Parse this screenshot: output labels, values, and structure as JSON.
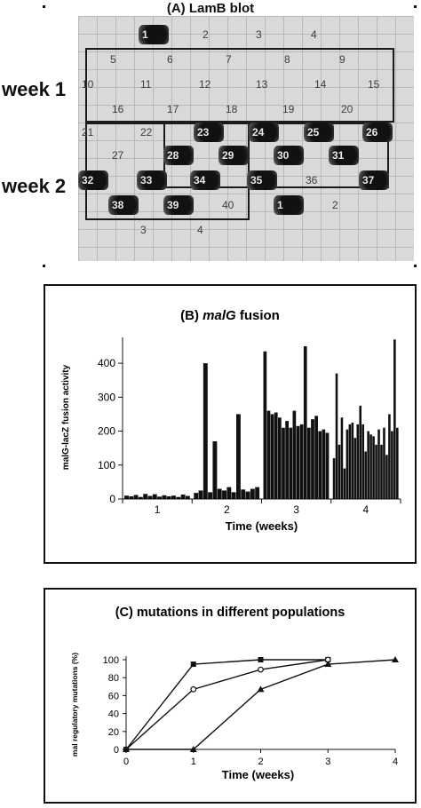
{
  "blot": {
    "title": "(A) LamB blot",
    "week1_label": "week 1",
    "week2_label": "week 2"
  },
  "blot_cells": [
    {
      "label": "1",
      "strong": true
    },
    {
      "label": "2",
      "strong": false
    },
    {
      "label": "3",
      "strong": false
    },
    {
      "label": "4",
      "strong": false
    },
    {
      "label": "5",
      "strong": false
    },
    {
      "label": "6",
      "strong": false
    },
    {
      "label": "7",
      "strong": false
    },
    {
      "label": "8",
      "strong": false
    },
    {
      "label": "9",
      "strong": false
    },
    {
      "label": "10",
      "strong": false
    },
    {
      "label": "11",
      "strong": false
    },
    {
      "label": "12",
      "strong": false
    },
    {
      "label": "13",
      "strong": false
    },
    {
      "label": "14",
      "strong": false
    },
    {
      "label": "15",
      "strong": false
    },
    {
      "label": "16",
      "strong": false
    },
    {
      "label": "17",
      "strong": false
    },
    {
      "label": "18",
      "strong": false
    },
    {
      "label": "19",
      "strong": false
    },
    {
      "label": "20",
      "strong": false
    },
    {
      "label": "21",
      "strong": false
    },
    {
      "label": "22",
      "strong": false
    },
    {
      "label": "23",
      "strong": true
    },
    {
      "label": "24",
      "strong": true
    },
    {
      "label": "25",
      "strong": true
    },
    {
      "label": "26",
      "strong": true
    },
    {
      "label": "27",
      "strong": false
    },
    {
      "label": "28",
      "strong": true
    },
    {
      "label": "29",
      "strong": true
    },
    {
      "label": "30",
      "strong": true
    },
    {
      "label": "31",
      "strong": true
    },
    {
      "label": "32",
      "strong": true
    },
    {
      "label": "33",
      "strong": true
    },
    {
      "label": "34",
      "strong": true
    },
    {
      "label": "35",
      "strong": true
    },
    {
      "label": "36",
      "strong": false
    },
    {
      "label": "37",
      "strong": true
    },
    {
      "label": "38",
      "strong": true
    },
    {
      "label": "39",
      "strong": true
    },
    {
      "label": "40",
      "strong": false
    },
    {
      "label": "1",
      "strong": true
    },
    {
      "label": "2",
      "strong": false
    },
    {
      "label": "3",
      "strong": false
    },
    {
      "label": "4",
      "strong": false
    }
  ],
  "chart_data": [
    {
      "type": "bar",
      "title_prefix": "(B) ",
      "title_italic": "malG",
      "title_suffix": " fusion",
      "xlabel": "Time (weeks)",
      "ylabel": "malG-lacZ fusion activity",
      "ylim": [
        0,
        450
      ],
      "yticks": [
        0,
        100,
        200,
        300,
        400
      ],
      "xticks": [
        "1",
        "2",
        "3",
        "4"
      ],
      "weeks": [
        {
          "week": "1",
          "values": [
            10,
            8,
            12,
            6,
            15,
            9,
            14,
            7,
            11,
            8,
            10,
            6,
            13,
            9
          ]
        },
        {
          "week": "2",
          "values": [
            18,
            25,
            400,
            20,
            170,
            30,
            25,
            35,
            20,
            250,
            28,
            22,
            30,
            35
          ]
        },
        {
          "week": "3",
          "values": [
            435,
            260,
            250,
            255,
            240,
            210,
            230,
            210,
            260,
            215,
            220,
            450,
            210,
            235,
            245,
            200,
            205,
            195
          ]
        },
        {
          "week": "4",
          "values": [
            120,
            370,
            160,
            240,
            90,
            205,
            220,
            225,
            180,
            220,
            275,
            220,
            140,
            200,
            190,
            185,
            160,
            205,
            160,
            210,
            130,
            250,
            200,
            470,
            210
          ]
        }
      ]
    },
    {
      "type": "line",
      "title": "(C) mutations in different populations",
      "xlabel": "Time (weeks)",
      "ylabel": "mal regulatory mutations (%)",
      "xlim": [
        0,
        4
      ],
      "ylim": [
        0,
        100
      ],
      "xticks": [
        "0",
        "1",
        "2",
        "3",
        "4"
      ],
      "yticks": [
        "0",
        "20",
        "40",
        "60",
        "80",
        "100"
      ],
      "series": [
        {
          "marker": "square",
          "x": [
            0,
            1,
            2,
            3
          ],
          "values": [
            0,
            95,
            100,
            100
          ]
        },
        {
          "marker": "circle",
          "x": [
            0,
            1,
            2,
            3
          ],
          "values": [
            0,
            67,
            89,
            100
          ]
        },
        {
          "marker": "triangle",
          "x": [
            0,
            1,
            2,
            3,
            4
          ],
          "values": [
            0,
            0,
            67,
            95,
            100
          ]
        }
      ]
    }
  ]
}
